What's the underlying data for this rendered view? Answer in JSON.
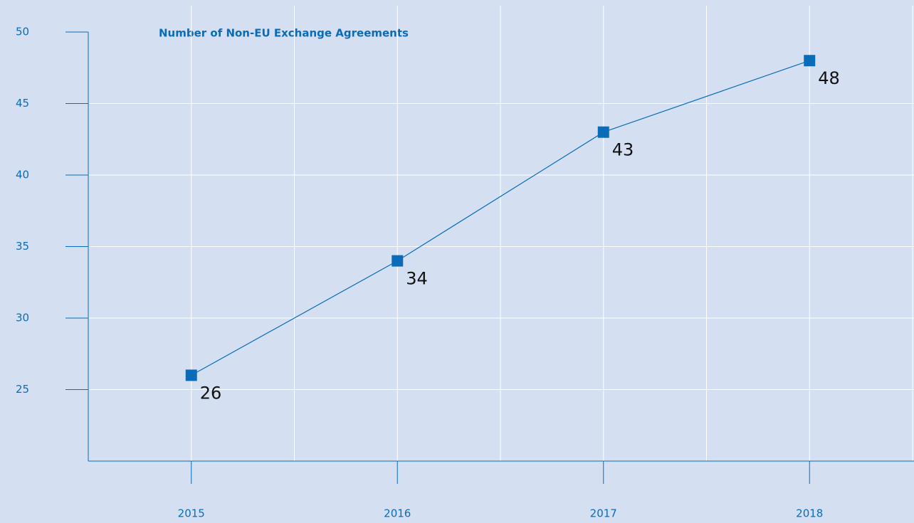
{
  "chart_data": {
    "type": "line",
    "title": "Number of Non-EU Exchange Agreements",
    "categories": [
      "2015",
      "2016",
      "2017",
      "2018"
    ],
    "series": [
      {
        "name": "Number of Non-EU Exchange Agreements",
        "color": "#0a6cb8",
        "values": [
          26,
          34,
          43,
          48
        ]
      }
    ],
    "ylim": [
      20,
      50
    ],
    "yticks": [
      25,
      30,
      35,
      40,
      45,
      50
    ],
    "grid": true
  }
}
